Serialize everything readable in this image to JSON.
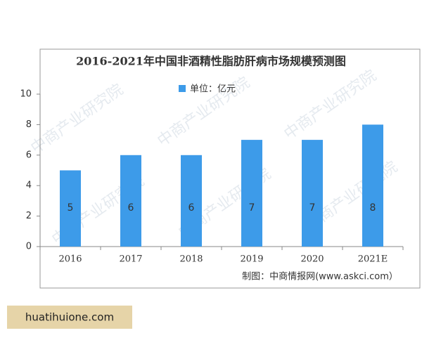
{
  "chart_data": {
    "type": "bar",
    "title": "2016-2021年中国非酒精性脂肪肝病市场规模预测图",
    "categories": [
      "2016",
      "2017",
      "2018",
      "2019",
      "2020",
      "2021E"
    ],
    "series": [
      {
        "name": "单位：亿元",
        "color": "#3d9be9",
        "values": [
          5,
          6,
          6,
          7,
          7,
          8
        ]
      }
    ],
    "ylim": [
      0,
      10
    ],
    "yticks": [
      0,
      2,
      4,
      6,
      8,
      10
    ],
    "grid": false,
    "legend": "top",
    "source": "制图：中商情报网(www.askci.com）",
    "watermark": "中商产业研究院"
  },
  "footer": {
    "site": "huatihuione.com"
  }
}
